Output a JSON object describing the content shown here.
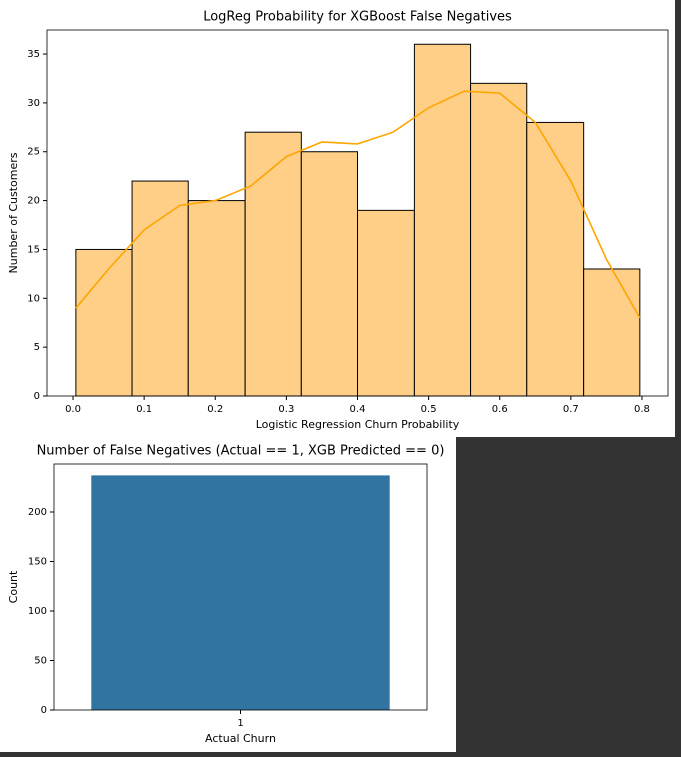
{
  "chart_data": [
    {
      "type": "histogram",
      "title": "LogReg Probability for XGBoost False Negatives",
      "x_label": "Logistic Regression Churn Probability",
      "y_label": "Number of Customers",
      "bins": [
        0.004,
        0.083,
        0.162,
        0.242,
        0.321,
        0.4,
        0.48,
        0.559,
        0.638,
        0.718,
        0.797
      ],
      "values": [
        15,
        22,
        20,
        27,
        25,
        19,
        36,
        32,
        28,
        13
      ],
      "color": "#ffcf87",
      "line_color": "#ffa500",
      "kde": {
        "x": [
          0.004,
          0.05,
          0.1,
          0.15,
          0.2,
          0.25,
          0.3,
          0.35,
          0.4,
          0.45,
          0.5,
          0.55,
          0.6,
          0.65,
          0.7,
          0.75,
          0.797
        ],
        "values": [
          9,
          13,
          17,
          19.5,
          20,
          21.5,
          24.5,
          26,
          25.8,
          27,
          29.5,
          31.2,
          31,
          28,
          22,
          14,
          8
        ]
      },
      "xlim": [
        -0.0366,
        0.8366
      ],
      "ylim": [
        0,
        37.46
      ],
      "xticks": [
        {
          "value": 0,
          "label": "0.0"
        },
        0.1,
        0.2,
        0.3,
        0.4,
        0.5,
        0.6,
        0.7,
        0.8
      ],
      "yticks": [
        0,
        5,
        10,
        15,
        20,
        25,
        30,
        35
      ]
    },
    {
      "type": "bar",
      "title": "Number of False Negatives (Actual == 1, XGB Predicted == 0)",
      "x_label": "Actual Churn",
      "y_label": "Count",
      "categories": [
        "1"
      ],
      "values": [
        237
      ],
      "color": "#3274a1",
      "ylim": [
        0,
        248.5
      ],
      "yticks": [
        0,
        50,
        100,
        150,
        200
      ]
    }
  ]
}
